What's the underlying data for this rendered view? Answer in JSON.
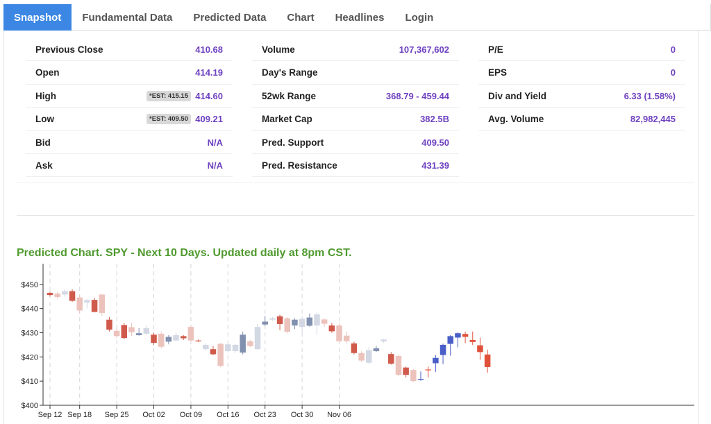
{
  "tabs": [
    "Snapshot",
    "Fundamental Data",
    "Predicted Data",
    "Chart",
    "Headlines",
    "Login"
  ],
  "stats": {
    "left": [
      {
        "label": "Previous Close",
        "value": "410.68"
      },
      {
        "label": "Open",
        "value": "414.19"
      },
      {
        "label": "High",
        "value": "414.60",
        "est": "*EST: 415.15"
      },
      {
        "label": "Low",
        "value": "409.21",
        "est": "*EST: 409.50"
      },
      {
        "label": "Bid",
        "value": "N/A"
      },
      {
        "label": "Ask",
        "value": "N/A"
      }
    ],
    "middle": [
      {
        "label": "Volume",
        "value": "107,367,602"
      },
      {
        "label": "Day's Range",
        "value": ""
      },
      {
        "label": "52wk Range",
        "value": "368.79 - 459.44"
      },
      {
        "label": "Market Cap",
        "value": "382.5B"
      },
      {
        "label": "Pred. Support",
        "value": "409.50"
      },
      {
        "label": "Pred. Resistance",
        "value": "431.39"
      }
    ],
    "right": [
      {
        "label": "P/E",
        "value": "0"
      },
      {
        "label": "EPS",
        "value": "0"
      },
      {
        "label": "Div and Yield",
        "value": "6.33 (1.58%)"
      },
      {
        "label": "Avg. Volume",
        "value": "82,982,445"
      }
    ]
  },
  "chart_title": "Predicted Chart. SPY - Next 10 Days. Updated daily at 8pm CST.",
  "colors": {
    "tab_active": "#3b87e3",
    "value_purple": "#6f42c1",
    "title_green": "#4f9a2f",
    "bear_dark": "#d05a4b",
    "bear_light": "#ecc3bc",
    "bull_dark": "#8290b0",
    "bull_light": "#d3d8e4",
    "pred_bull": "#4a5fc8",
    "pred_bear": "#e0513b"
  },
  "chart_data": {
    "type": "candlestick",
    "title": "Predicted Chart. SPY - Next 10 Days. Updated daily at 8pm CST.",
    "ylim": [
      400,
      460
    ],
    "yticks": [
      400,
      410,
      420,
      430,
      440,
      450
    ],
    "ytick_labels": [
      "$400",
      "$410",
      "$420",
      "$430",
      "$440",
      "$450"
    ],
    "xtick_labels": [
      "Sep 12",
      "Sep 18",
      "Sep 25",
      "Oct 02",
      "Oct 09",
      "Oct 16",
      "Oct 23",
      "Oct 30",
      "Nov 06"
    ],
    "xtick_index": [
      0,
      4,
      9,
      14,
      19,
      24,
      29,
      34,
      39
    ],
    "candles": [
      {
        "o": 446.5,
        "c": 445.6,
        "h": 447,
        "l": 445,
        "s": "bear_dark"
      },
      {
        "o": 446.2,
        "c": 444.8,
        "h": 447,
        "l": 444,
        "s": "bear_light"
      },
      {
        "o": 445.8,
        "c": 447.2,
        "h": 448,
        "l": 445,
        "s": "bull_light"
      },
      {
        "o": 447.2,
        "c": 443.2,
        "h": 448,
        "l": 442.8,
        "s": "bear_dark"
      },
      {
        "o": 444.6,
        "c": 439.2,
        "h": 445.5,
        "l": 438,
        "s": "bear_light"
      },
      {
        "o": 442.5,
        "c": 443.5,
        "h": 444,
        "l": 440,
        "s": "bull_light"
      },
      {
        "o": 443.6,
        "c": 438.6,
        "h": 444.5,
        "l": 438.4,
        "s": "bear_dark"
      },
      {
        "o": 445.8,
        "c": 438.2,
        "h": 446,
        "l": 437,
        "s": "bear_light"
      },
      {
        "o": 435.4,
        "c": 431.3,
        "h": 436.5,
        "l": 430.5,
        "s": "bear_dark"
      },
      {
        "o": 430.8,
        "c": 428.6,
        "h": 432,
        "l": 427.8,
        "s": "bear_light"
      },
      {
        "o": 433.2,
        "c": 427.8,
        "h": 434,
        "l": 427.3,
        "s": "bear_dark"
      },
      {
        "o": 432.3,
        "c": 430.2,
        "h": 434,
        "l": 428.6,
        "s": "bear_light"
      },
      {
        "o": 429.0,
        "c": 429.8,
        "h": 432,
        "l": 428.8,
        "s": "bull_dark"
      },
      {
        "o": 429.6,
        "c": 431.9,
        "h": 433,
        "l": 429.2,
        "s": "bull_light"
      },
      {
        "o": 429.2,
        "c": 425.8,
        "h": 430,
        "l": 425,
        "s": "bear_dark"
      },
      {
        "o": 429.6,
        "c": 424.2,
        "h": 430.5,
        "l": 423.5,
        "s": "bear_light"
      },
      {
        "o": 426.3,
        "c": 428.3,
        "h": 429,
        "l": 425.2,
        "s": "bull_dark"
      },
      {
        "o": 426.8,
        "c": 429.0,
        "h": 430,
        "l": 426.5,
        "s": "bull_light"
      },
      {
        "o": 428.6,
        "c": 427.7,
        "h": 429,
        "l": 427,
        "s": "bear_dark"
      },
      {
        "o": 432.4,
        "c": 426.8,
        "h": 433,
        "l": 426.5,
        "s": "bear_light"
      },
      {
        "o": 426.6,
        "c": 426.8,
        "h": 427.2,
        "l": 426.2,
        "s": "bear_dark"
      },
      {
        "o": 423.2,
        "c": 425.0,
        "h": 425.5,
        "l": 422.6,
        "s": "bull_light"
      },
      {
        "o": 423.2,
        "c": 421.1,
        "h": 424.5,
        "l": 420.7,
        "s": "bear_dark"
      },
      {
        "o": 425.4,
        "c": 416.3,
        "h": 425.8,
        "l": 415.7,
        "s": "bear_light"
      },
      {
        "o": 422.4,
        "c": 425.2,
        "h": 425.5,
        "l": 421.7,
        "s": "bull_light"
      },
      {
        "o": 422.4,
        "c": 425.0,
        "h": 425.4,
        "l": 421.7,
        "s": "bull_light"
      },
      {
        "o": 421.8,
        "c": 429.2,
        "h": 430.5,
        "l": 421.0,
        "s": "bull_dark"
      },
      {
        "o": 426.5,
        "c": 424.5,
        "h": 427.0,
        "l": 424.0,
        "s": "bear_light"
      },
      {
        "o": 423.2,
        "c": 432.4,
        "h": 433.5,
        "l": 423.0,
        "s": "bull_light"
      },
      {
        "o": 433.4,
        "c": 434.6,
        "h": 437.0,
        "l": 432.8,
        "s": "bull_dark"
      },
      {
        "o": 435.4,
        "c": 436.0,
        "h": 436.5,
        "l": 434.8,
        "s": "bull_light"
      },
      {
        "o": 436.8,
        "c": 433.6,
        "h": 437.5,
        "l": 431.0,
        "s": "bear_dark"
      },
      {
        "o": 436.0,
        "c": 430.4,
        "h": 436.5,
        "l": 429.8,
        "s": "bear_light"
      },
      {
        "o": 433.0,
        "c": 435.4,
        "h": 436.0,
        "l": 431.5,
        "s": "bull_dark"
      },
      {
        "o": 432.4,
        "c": 435.8,
        "h": 436.8,
        "l": 429.2,
        "s": "bull_light"
      },
      {
        "o": 432.9,
        "c": 436.3,
        "h": 438.0,
        "l": 432.5,
        "s": "bull_dark"
      },
      {
        "o": 433.0,
        "c": 437.6,
        "h": 438.5,
        "l": 429.0,
        "s": "bull_light"
      },
      {
        "o": 435.5,
        "c": 433.7,
        "h": 436.0,
        "l": 432.5,
        "s": "bear_light"
      },
      {
        "o": 433.0,
        "c": 430.6,
        "h": 434.0,
        "l": 430.0,
        "s": "bear_dark"
      },
      {
        "o": 433.0,
        "c": 426.5,
        "h": 434.0,
        "l": 426.0,
        "s": "bear_light"
      },
      {
        "o": 428.8,
        "c": 426.5,
        "h": 430.5,
        "l": 425.6,
        "s": "bear_light"
      },
      {
        "o": 425.6,
        "c": 421.6,
        "h": 426.3,
        "l": 421.0,
        "s": "bear_dark"
      },
      {
        "o": 421.6,
        "c": 418.5,
        "h": 422.3,
        "l": 418.0,
        "s": "bear_light"
      },
      {
        "o": 417.6,
        "c": 422.8,
        "h": 424.0,
        "l": 417.0,
        "s": "bull_light"
      },
      {
        "o": 422.4,
        "c": 423.6,
        "h": 424.5,
        "l": 422.0,
        "s": "bull_dark"
      },
      {
        "o": 426.4,
        "c": 427.2,
        "h": 427.5,
        "l": 425.8,
        "s": "bull_light"
      },
      {
        "o": 421.2,
        "c": 417.2,
        "h": 422.0,
        "l": 416.8,
        "s": "bear_dark"
      },
      {
        "o": 420.4,
        "c": 412.6,
        "h": 421.0,
        "l": 412.0,
        "s": "bear_light"
      },
      {
        "o": 415.6,
        "c": 412.6,
        "h": 416.0,
        "l": 411.5,
        "s": "bear_dark"
      },
      {
        "o": 414.6,
        "c": 410.0,
        "h": 415.0,
        "l": 409.6,
        "s": "bear_light"
      },
      {
        "o": 410.6,
        "c": 410.9,
        "h": 414.0,
        "l": 410.2,
        "s": "pred_bull"
      },
      {
        "o": 414.8,
        "c": 414.5,
        "h": 416.0,
        "l": 411.5,
        "s": "pred_bear"
      },
      {
        "o": 417.4,
        "c": 419.6,
        "h": 420.8,
        "l": 413.8,
        "s": "pred_bull"
      },
      {
        "o": 420.8,
        "c": 425.0,
        "h": 425.5,
        "l": 417.0,
        "s": "pred_bull"
      },
      {
        "o": 425.4,
        "c": 428.6,
        "h": 429.0,
        "l": 420.5,
        "s": "pred_bull"
      },
      {
        "o": 428.0,
        "c": 429.8,
        "h": 430.2,
        "l": 424.0,
        "s": "pred_bull"
      },
      {
        "o": 429.5,
        "c": 428.3,
        "h": 430.5,
        "l": 425.7,
        "s": "pred_bear"
      },
      {
        "o": 427.0,
        "c": 426.2,
        "h": 430.5,
        "l": 425.0,
        "s": "pred_bear"
      },
      {
        "o": 424.8,
        "c": 422.0,
        "h": 428.0,
        "l": 418.8,
        "s": "pred_bear"
      },
      {
        "o": 421.0,
        "c": 415.8,
        "h": 423.0,
        "l": 413.5,
        "s": "pred_bear"
      }
    ]
  }
}
